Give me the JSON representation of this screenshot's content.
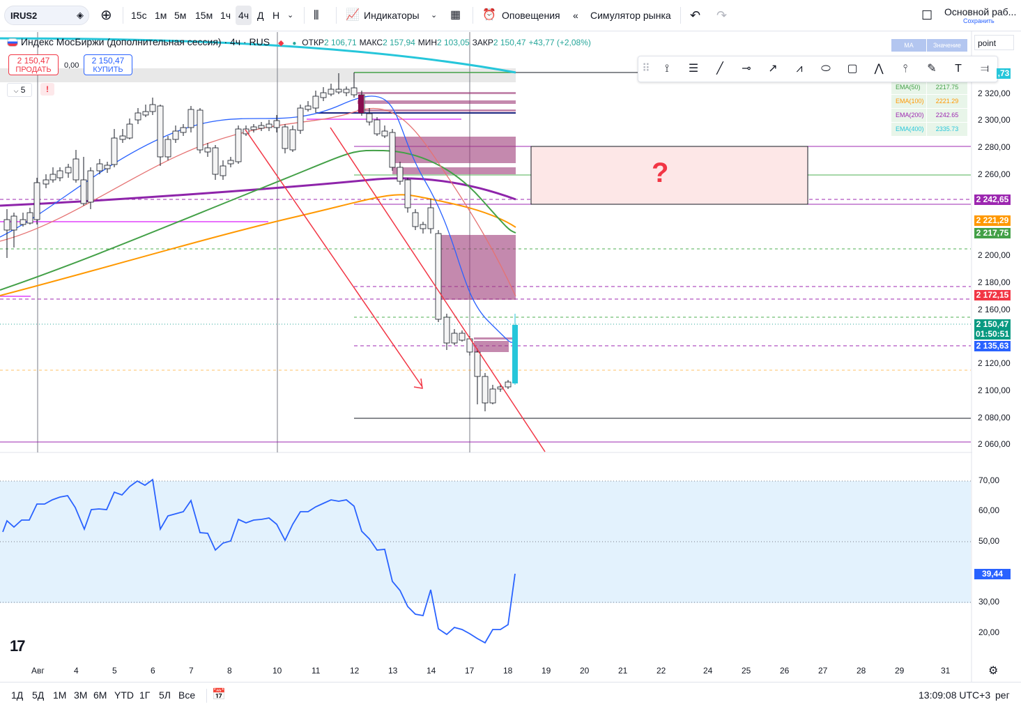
{
  "toolbar": {
    "symbol": "IRUS2",
    "timeframes": [
      "15с",
      "1м",
      "5м",
      "15м",
      "1ч",
      "4ч",
      "Д",
      "Н"
    ],
    "active_timeframe": "4ч",
    "indicators_label": "Индикаторы",
    "alerts_label": "Оповещения",
    "simulator_label": "Симулятор рынка",
    "layout_title": "Основной раб...",
    "layout_save": "Сохранить"
  },
  "legend": {
    "title": "Индекс МосБиржи (дополнительная сессия) · 4ч · RUS",
    "open_label": "ОТКР",
    "open": "2 106,71",
    "high_label": "МАКС",
    "high": "2 157,94",
    "low_label": "МИН",
    "low": "2 103,05",
    "close_label": "ЗАКР",
    "close": "2 150,47",
    "change": "+43,77 (+2,08%)"
  },
  "trade": {
    "sell_price": "2 150,47",
    "sell_label": "ПРОДАТЬ",
    "spread": "0,00",
    "buy_price": "2 150,47",
    "buy_label": "КУПИТЬ",
    "indicator_count": "5",
    "warning": "!"
  },
  "ema_table": {
    "header_ma": "MA",
    "header_value": "Значение",
    "rows": [
      {
        "name": "EMA(50)",
        "value": "2217.75",
        "color": "#43a047"
      },
      {
        "name": "EMA(100)",
        "value": "2221.29",
        "color": "#ff9800"
      },
      {
        "name": "EMA(200)",
        "value": "2242.65",
        "color": "#9c27b0"
      },
      {
        "name": "EMA(400)",
        "value": "2335.73",
        "color": "#26c6da"
      }
    ]
  },
  "point_field": "point",
  "price_axis": [
    "2 320,00",
    "2 300,00",
    "2 280,00",
    "2 260,00",
    "2 200,00",
    "2 180,00",
    "2 160,00",
    "2 120,00",
    "2 100,00",
    "2 080,00",
    "2 060,00"
  ],
  "price_tags": [
    {
      "text": ",73",
      "color": "#26c6da"
    },
    {
      "text": "2 242,65",
      "color": "#9c27b0"
    },
    {
      "text": "2 221,29",
      "color": "#ff9800"
    },
    {
      "text": "2 217,75",
      "color": "#43a047"
    },
    {
      "text": "2 172,15",
      "color": "#f23645"
    },
    {
      "text": "2 150,47",
      "color": "#089981"
    },
    {
      "text": "01:50:51",
      "color": "#089981"
    },
    {
      "text": "2 135,63",
      "color": "#2962ff"
    }
  ],
  "annotation_mark": "?",
  "rsi_axis": [
    "70,00",
    "60,00",
    "50,00",
    "30,00",
    "20,00"
  ],
  "rsi_value": "39,44",
  "time_axis": [
    "Авг",
    "4",
    "5",
    "6",
    "7",
    "8",
    "10",
    "11",
    "12",
    "13",
    "14",
    "17",
    "18",
    "19",
    "20",
    "21",
    "22",
    "24",
    "25",
    "26",
    "27",
    "28",
    "29",
    "31"
  ],
  "ranges": [
    "1Д",
    "5Д",
    "1М",
    "3М",
    "6М",
    "YTD",
    "1Г",
    "5Л",
    "Все"
  ],
  "clock": "13:09:08 UTC+3",
  "session": "рег",
  "logo": "17"
}
